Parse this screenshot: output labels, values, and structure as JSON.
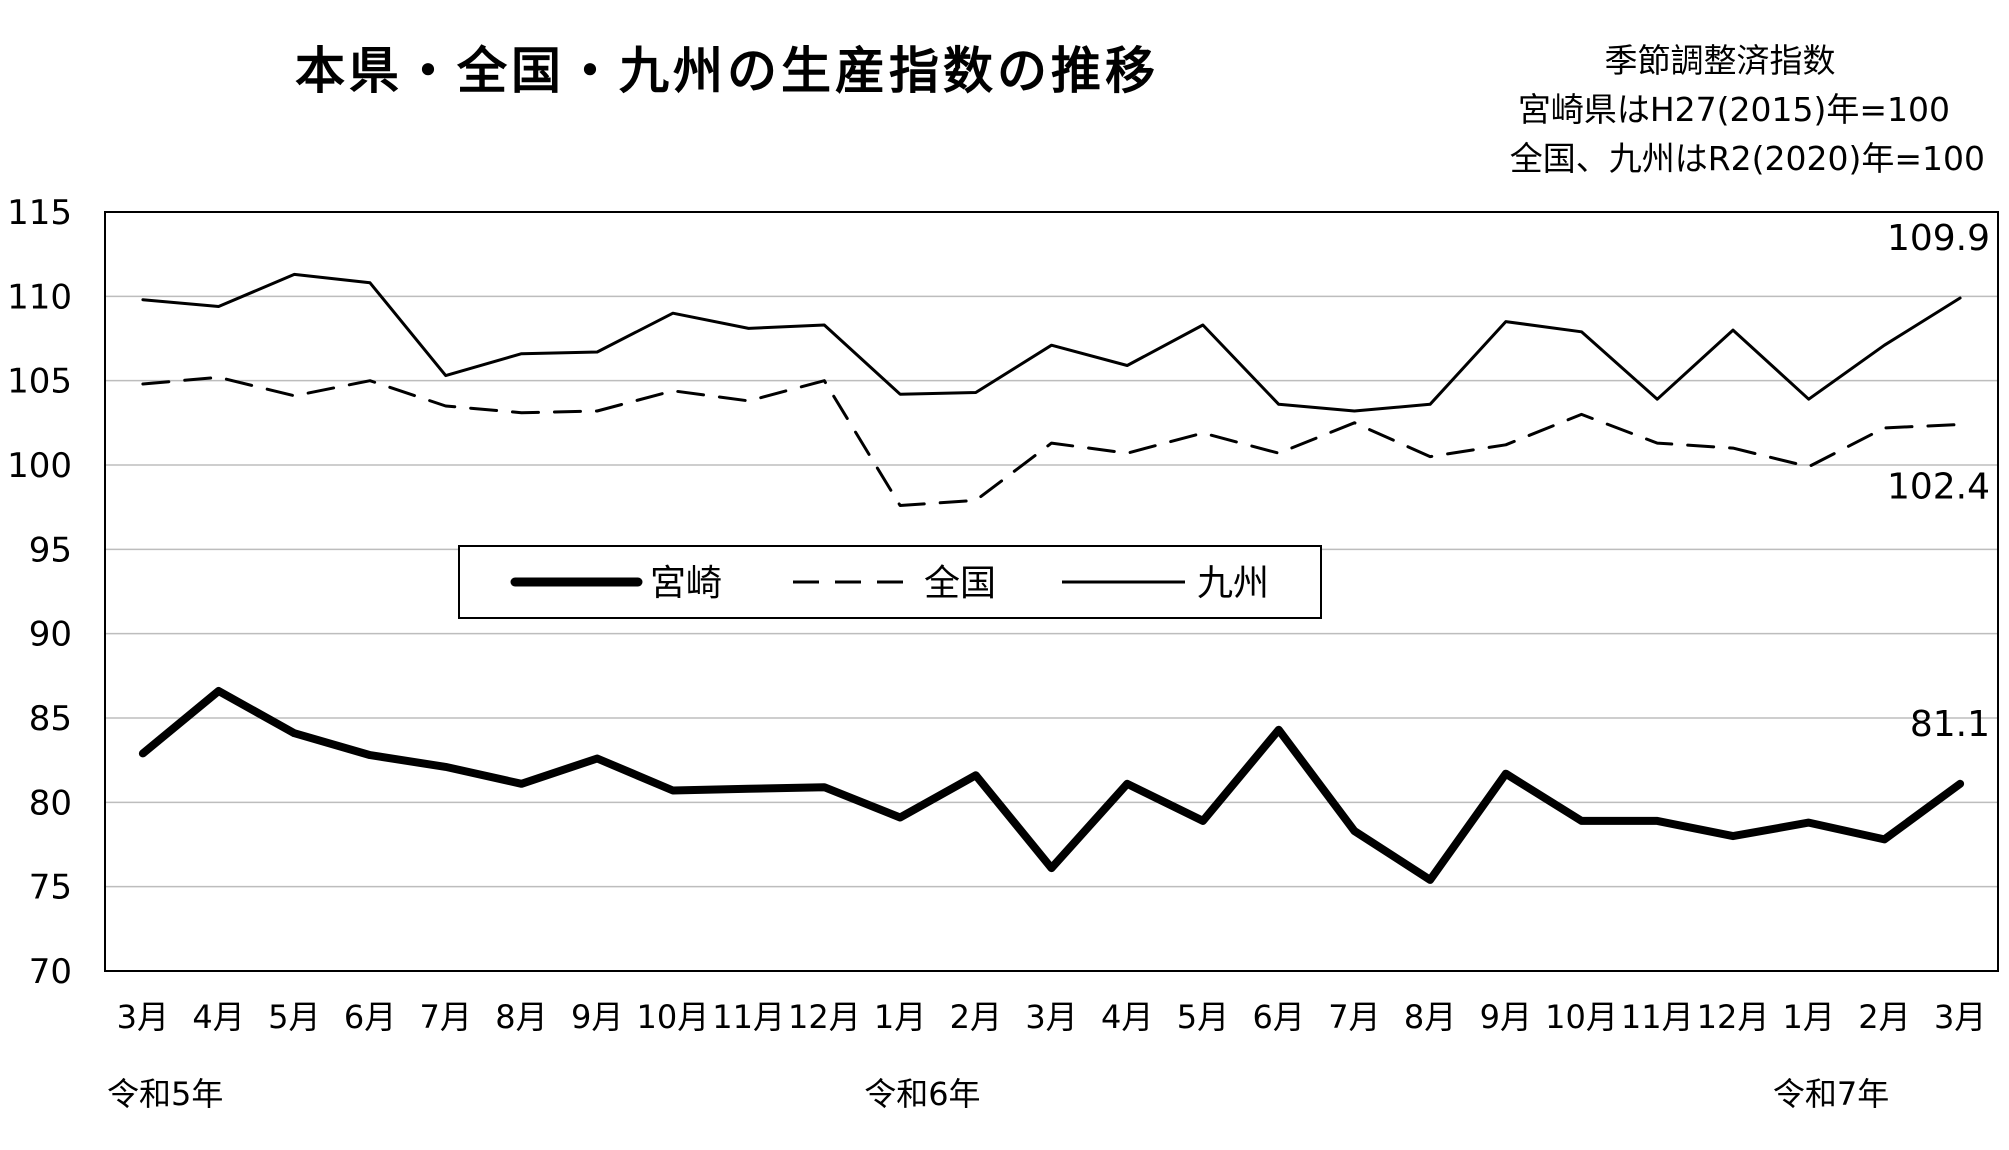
{
  "chart_data": {
    "type": "line",
    "title": "本県・全国・九州の生産指数の推移",
    "notes": [
      "季節調整済指数",
      "宮崎県はH27(2015)年=100",
      "全国、九州はR2(2020)年=100"
    ],
    "categories": [
      "3月",
      "4月",
      "5月",
      "6月",
      "7月",
      "8月",
      "9月",
      "10月",
      "11月",
      "12月",
      "1月",
      "2月",
      "3月",
      "4月",
      "5月",
      "6月",
      "7月",
      "8月",
      "9月",
      "10月",
      "11月",
      "12月",
      "1月",
      "2月",
      "3月"
    ],
    "era_labels": [
      {
        "label": "令和5年",
        "index": 0
      },
      {
        "label": "令和6年",
        "index": 10
      },
      {
        "label": "令和7年",
        "index": 22
      }
    ],
    "ylim": [
      70,
      115
    ],
    "yticks": [
      70,
      75,
      80,
      85,
      90,
      95,
      100,
      105,
      110,
      115
    ],
    "grid": true,
    "legend_position": "center",
    "series": [
      {
        "name": "宮崎",
        "style": "thick-solid",
        "values": [
          82.9,
          86.6,
          84.1,
          82.8,
          82.1,
          81.1,
          82.6,
          80.7,
          80.8,
          80.9,
          79.1,
          81.6,
          76.1,
          81.1,
          78.9,
          84.3,
          78.3,
          75.4,
          81.7,
          78.9,
          78.9,
          78.0,
          78.8,
          77.8,
          81.1
        ]
      },
      {
        "name": "全国",
        "style": "dashed",
        "values": [
          104.8,
          105.2,
          104.1,
          105.0,
          103.5,
          103.1,
          103.2,
          104.4,
          103.8,
          105.0,
          97.6,
          97.9,
          101.3,
          100.7,
          101.9,
          100.7,
          102.5,
          100.5,
          101.2,
          103.0,
          101.3,
          101.0,
          99.9,
          102.2,
          102.4
        ]
      },
      {
        "name": "九州",
        "style": "solid",
        "values": [
          109.8,
          109.4,
          111.3,
          110.8,
          105.3,
          106.6,
          106.7,
          109.0,
          108.1,
          108.3,
          104.2,
          104.3,
          107.1,
          105.9,
          108.3,
          103.6,
          103.2,
          103.6,
          108.5,
          107.9,
          103.9,
          108.0,
          103.9,
          107.1,
          109.9
        ]
      }
    ],
    "end_labels": [
      {
        "series": "九州",
        "text": "109.9"
      },
      {
        "series": "全国",
        "text": "102.4"
      },
      {
        "series": "宮崎",
        "text": "81.1"
      }
    ]
  }
}
